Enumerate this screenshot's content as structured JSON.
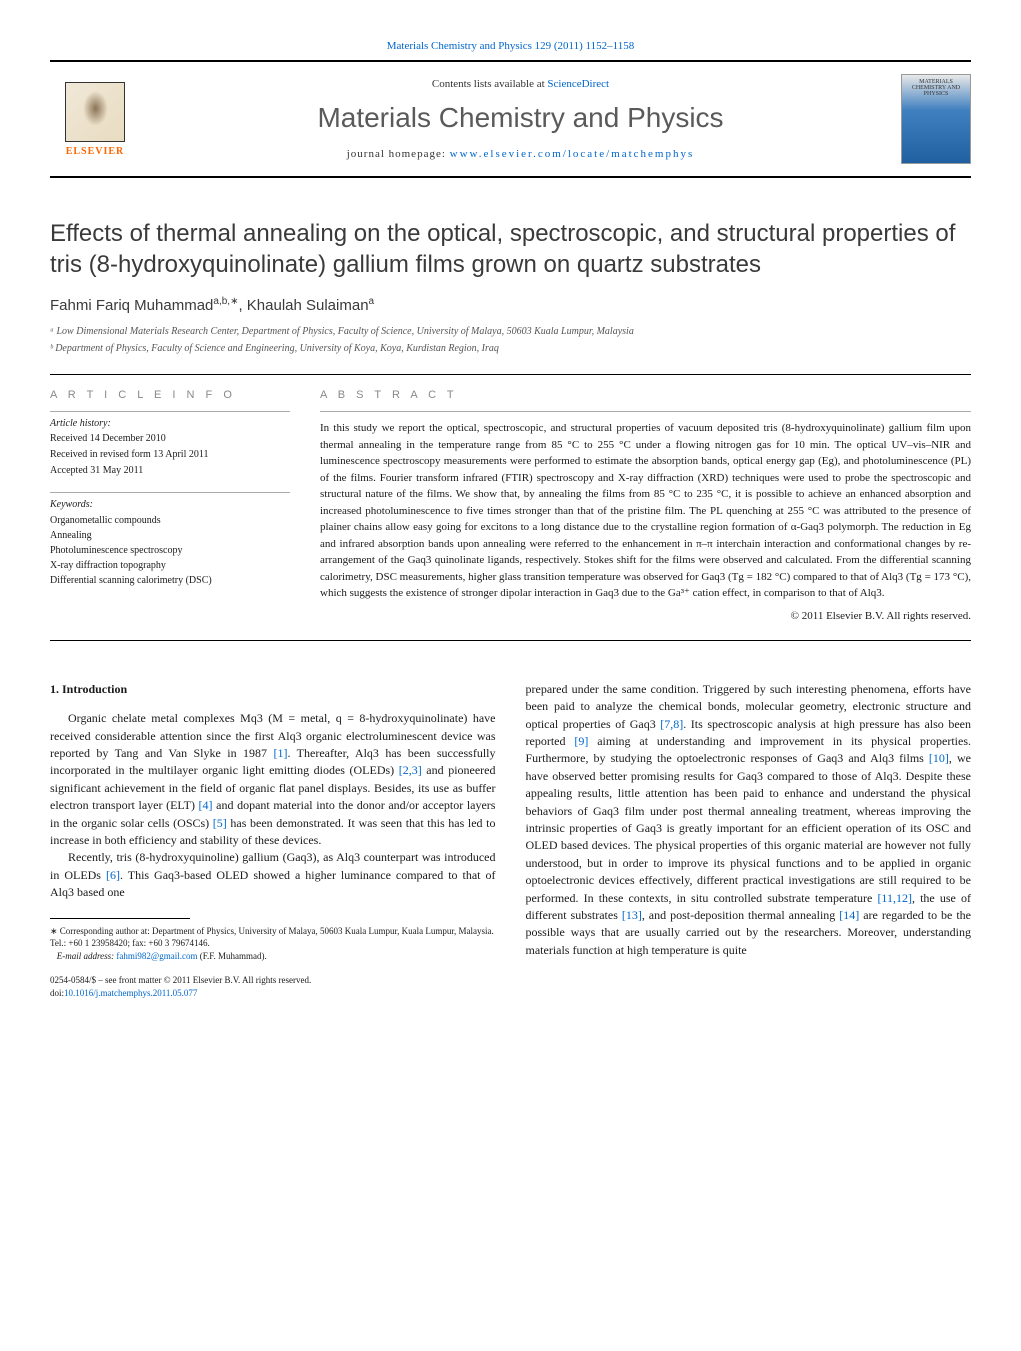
{
  "header": {
    "citation": "Materials Chemistry and Physics 129 (2011) 1152–1158",
    "contents_prefix": "Contents lists available at ",
    "contents_link": "ScienceDirect",
    "journal_title": "Materials Chemistry and Physics",
    "homepage_prefix": "journal homepage: ",
    "homepage_url": "www.elsevier.com/locate/matchemphys",
    "elsevier": "ELSEVIER",
    "cover_text": "MATERIALS CHEMISTRY AND PHYSICS"
  },
  "article": {
    "title": "Effects of thermal annealing on the optical, spectroscopic, and structural properties of tris (8-hydroxyquinolinate) gallium films grown on quartz substrates",
    "authors_html": "Fahmi Fariq Muhammad",
    "author_sup": "a,b,∗",
    "author2": ", Khaulah Sulaiman",
    "author2_sup": "a",
    "affil_a": "ᵃ Low Dimensional Materials Research Center, Department of Physics, Faculty of Science, University of Malaya, 50603 Kuala Lumpur, Malaysia",
    "affil_b": "ᵇ Department of Physics, Faculty of Science and Engineering, University of Koya, Koya, Kurdistan Region, Iraq"
  },
  "info": {
    "label": "A R T I C L E   I N F O",
    "history_label": "Article history:",
    "received": "Received 14 December 2010",
    "revised": "Received in revised form 13 April 2011",
    "accepted": "Accepted 31 May 2011",
    "keywords_label": "Keywords:",
    "kw1": "Organometallic compounds",
    "kw2": "Annealing",
    "kw3": "Photoluminescence spectroscopy",
    "kw4": "X-ray diffraction topography",
    "kw5": "Differential scanning calorimetry (DSC)"
  },
  "abstract": {
    "label": "A B S T R A C T",
    "text": "In this study we report the optical, spectroscopic, and structural properties of vacuum deposited tris (8-hydroxyquinolinate) gallium film upon thermal annealing in the temperature range from 85 °C to 255 °C under a flowing nitrogen gas for 10 min. The optical UV–vis–NIR and luminescence spectroscopy measurements were performed to estimate the absorption bands, optical energy gap (Eg), and photoluminescence (PL) of the films. Fourier transform infrared (FTIR) spectroscopy and X-ray diffraction (XRD) techniques were used to probe the spectroscopic and structural nature of the films. We show that, by annealing the films from 85 °C to 235 °C, it is possible to achieve an enhanced absorption and increased photoluminescence to five times stronger than that of the pristine film. The PL quenching at 255 °C was attributed to the presence of plainer chains allow easy going for excitons to a long distance due to the crystalline region formation of α-Gaq3 polymorph. The reduction in Eg and infrared absorption bands upon annealing were referred to the enhancement in π–π interchain interaction and conformational changes by re-arrangement of the Gaq3 quinolinate ligands, respectively. Stokes shift for the films were observed and calculated. From the differential scanning calorimetry, DSC measurements, higher glass transition temperature was observed for Gaq3 (Tg = 182 °C) compared to that of Alq3 (Tg = 173 °C), which suggests the existence of stronger dipolar interaction in Gaq3 due to the Ga³⁺ cation effect, in comparison to that of Alq3.",
    "copyright": "© 2011 Elsevier B.V. All rights reserved."
  },
  "body": {
    "section1_heading": "1.  Introduction",
    "col1_p1_a": "Organic chelate metal complexes Mq3 (M = metal, q = 8-hydroxyquinolinate) have received considerable attention since the first Alq3 organic electroluminescent device was reported by Tang and Van Slyke in 1987 ",
    "col1_ref1": "[1]",
    "col1_p1_b": ". Thereafter, Alq3 has been successfully incorporated in the multilayer organic light emitting diodes (OLEDs) ",
    "col1_ref23": "[2,3]",
    "col1_p1_c": " and pioneered significant achievement in the field of organic flat panel displays. Besides, its use as buffer electron transport layer (ELT) ",
    "col1_ref4": "[4]",
    "col1_p1_d": " and dopant material into the donor and/or acceptor layers in the organic solar cells (OSCs) ",
    "col1_ref5": "[5]",
    "col1_p1_e": " has been demonstrated. It was seen that this has led to increase in both efficiency and stability of these devices.",
    "col1_p2_a": "Recently, tris (8-hydroxyquinoline) gallium (Gaq3), as Alq3 counterpart was introduced in OLEDs ",
    "col1_ref6": "[6]",
    "col1_p2_b": ". This Gaq3-based OLED showed a higher luminance compared to that of Alq3 based one",
    "col2_p1_a": "prepared under the same condition. Triggered by such interesting phenomena, efforts have been paid to analyze the chemical bonds, molecular geometry, electronic structure and optical properties of Gaq3 ",
    "col2_ref78": "[7,8]",
    "col2_p1_b": ". Its spectroscopic analysis at high pressure has also been reported ",
    "col2_ref9": "[9]",
    "col2_p1_c": " aiming at understanding and improvement in its physical properties. Furthermore, by studying the optoelectronic responses of Gaq3 and Alq3 films ",
    "col2_ref10": "[10]",
    "col2_p1_d": ", we have observed better promising results for Gaq3 compared to those of Alq3. Despite these appealing results, little attention has been paid to enhance and understand the physical behaviors of Gaq3 film under post thermal annealing treatment, whereas improving the intrinsic properties of Gaq3 is greatly important for an efficient operation of its OSC and OLED based devices. The physical properties of this organic material are however not fully understood, but in order to improve its physical functions and to be applied in organic optoelectronic devices effectively, different practical investigations are still required to be performed. In these contexts, in situ controlled substrate temperature ",
    "col2_ref1112": "[11,12]",
    "col2_p1_e": ", the use of different substrates ",
    "col2_ref13": "[13]",
    "col2_p1_f": ", and post-deposition thermal annealing ",
    "col2_ref14": "[14]",
    "col2_p1_g": " are regarded to be the possible ways that are usually carried out by the researchers. Moreover, understanding materials function at high temperature is quite"
  },
  "footnote": {
    "corr": "∗ Corresponding author at: Department of Physics, University of Malaya, 50603 Kuala Lumpur, Kuala Lumpur, Malaysia. Tel.: +60 1 23958420; fax: +60 3 79674146.",
    "email_label": "E-mail address: ",
    "email": "fahmi982@gmail.com",
    "email_suffix": " (F.F. Muhammad).",
    "issn": "0254-0584/$ – see front matter © 2011 Elsevier B.V. All rights reserved.",
    "doi_label": "doi:",
    "doi": "10.1016/j.matchemphys.2011.05.077"
  }
}
